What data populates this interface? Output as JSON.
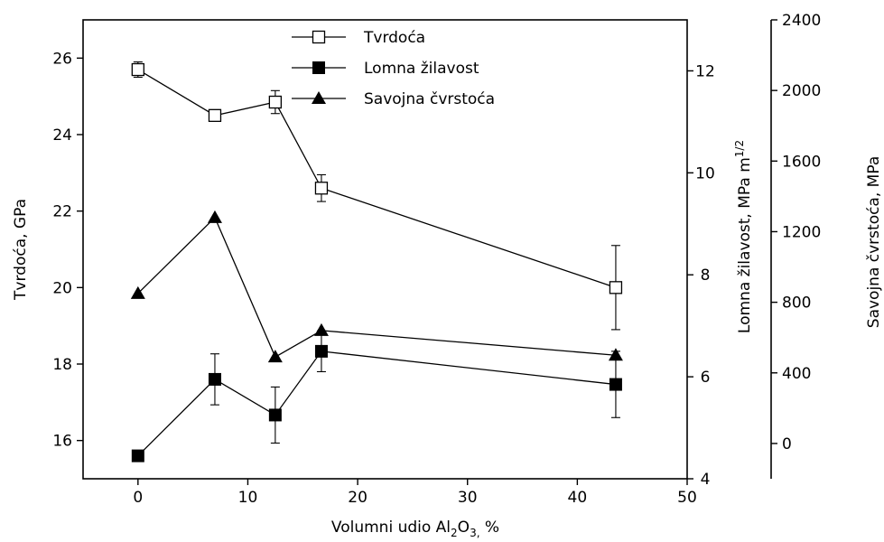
{
  "chart_data": {
    "type": "line",
    "xlabel": {
      "pre": "Volumni udio Al",
      "sub1": "2",
      "mid": "O",
      "sub2": "3,",
      "post": " %"
    },
    "xlim": [
      -5,
      50
    ],
    "xticks": [
      "0",
      "10",
      "20",
      "30",
      "40",
      "50"
    ],
    "axes": {
      "left": {
        "label": "Tvrdoća, GPa",
        "lim": [
          15,
          27
        ],
        "ticks": [
          "16",
          "18",
          "20",
          "22",
          "24",
          "26"
        ]
      },
      "right1": {
        "label_pre": "Lomna žilavost, MPa m",
        "label_sup": "1/2",
        "lim": [
          4,
          13
        ],
        "ticks": [
          "4",
          "6",
          "8",
          "10",
          "12"
        ]
      },
      "right2": {
        "label": "Savojna čvrstoća, MPa",
        "lim": [
          -200,
          2400
        ],
        "ticks": [
          "0",
          "400",
          "800",
          "1200",
          "1600",
          "2000",
          "2400"
        ]
      }
    },
    "series": [
      {
        "name": "Tvrdoća",
        "axis": "left",
        "marker": "open-square",
        "x": [
          0,
          7,
          12.5,
          16.7,
          43.5
        ],
        "y": [
          25.7,
          24.5,
          24.85,
          22.6,
          20.0
        ],
        "err": [
          0.2,
          0.15,
          0.3,
          0.35,
          1.1
        ]
      },
      {
        "name": "Lomna žilavost",
        "axis": "right1",
        "marker": "filled-square",
        "x": [
          0,
          7,
          12.5,
          16.7,
          43.5
        ],
        "y": [
          4.45,
          5.95,
          5.25,
          6.5,
          5.85
        ],
        "err": [
          0,
          0.5,
          0.55,
          0.4,
          0.65
        ]
      },
      {
        "name": "Savojna čvrstoća",
        "axis": "right2",
        "marker": "filled-triangle",
        "x": [
          0,
          7,
          12.5,
          16.7,
          43.5
        ],
        "y": [
          850,
          1280,
          490,
          640,
          500
        ],
        "err": [
          0,
          0,
          0,
          0,
          0
        ]
      }
    ],
    "legend_position": "top-center",
    "grid": false
  }
}
